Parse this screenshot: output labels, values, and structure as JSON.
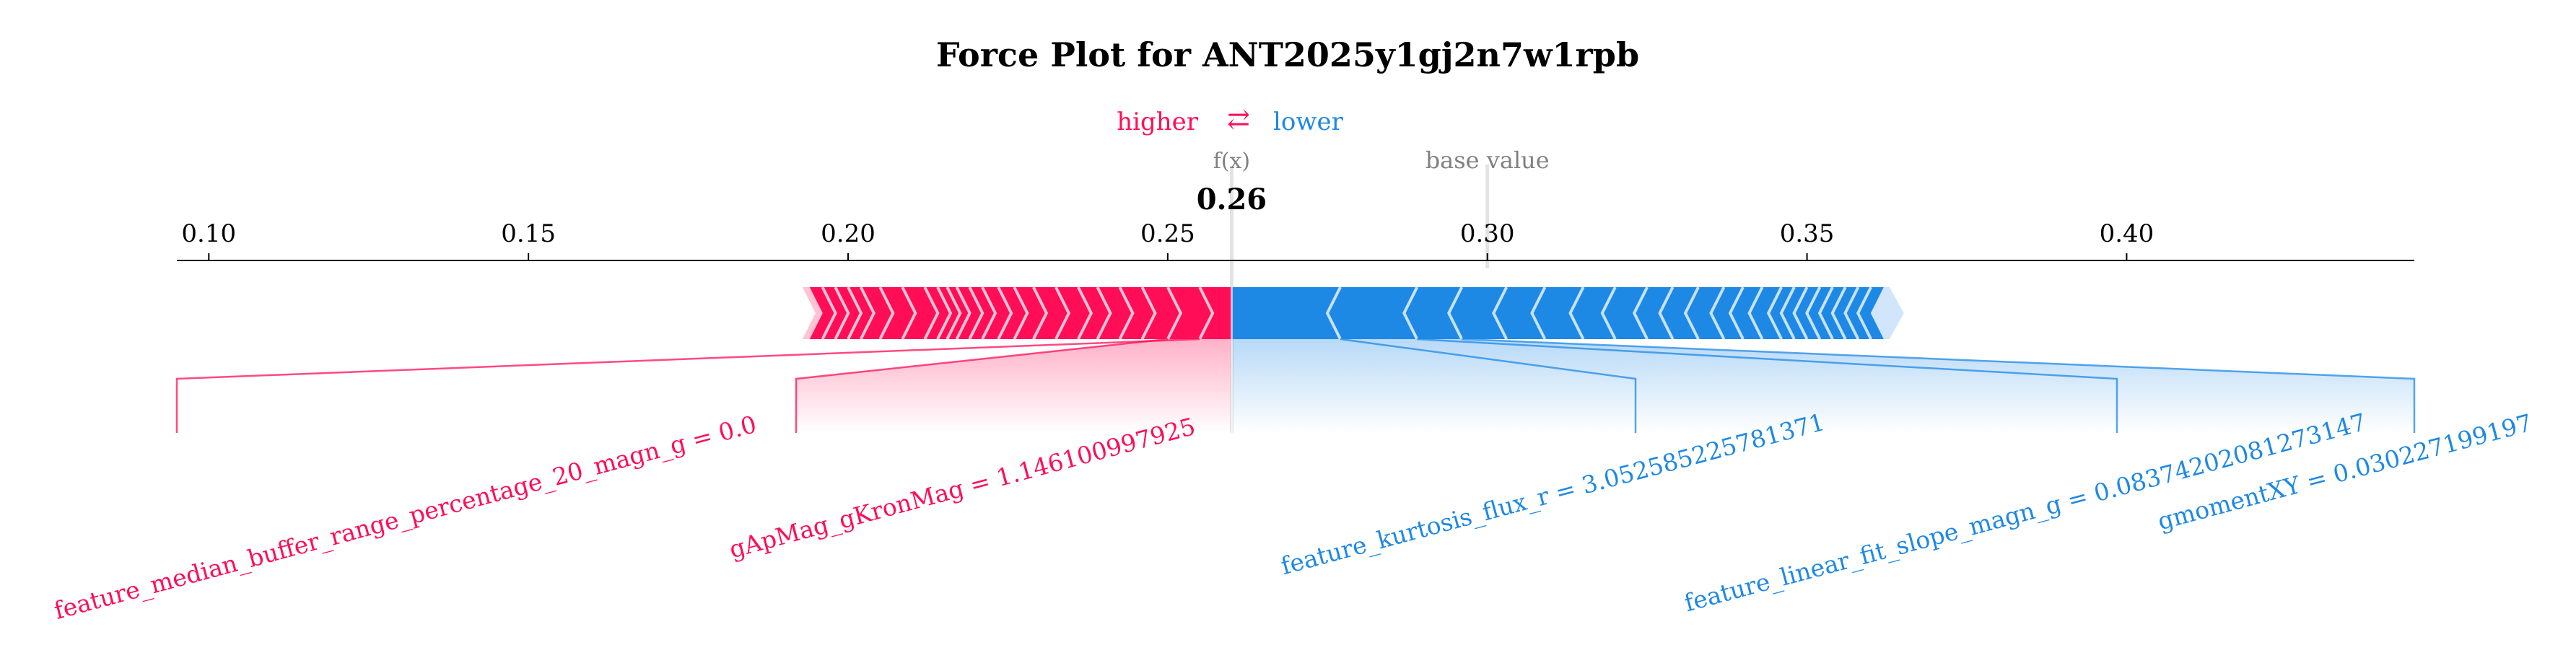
{
  "chart_data": {
    "type": "force",
    "title": "Force Plot for ANT2025y1gj2n7w1rpb",
    "legend": {
      "higher_label": "higher",
      "arrow_glyph": "⇄",
      "lower_label": "lower"
    },
    "fx_label": "f(x)",
    "fx_value": 0.26,
    "fx_value_text": "0.26",
    "base_value_label": "base value",
    "base_value": 0.3,
    "xlim": [
      0.095,
      0.445
    ],
    "ticks": [
      {
        "value": 0.1,
        "label": "0.10"
      },
      {
        "value": 0.15,
        "label": "0.15"
      },
      {
        "value": 0.2,
        "label": "0.20"
      },
      {
        "value": 0.25,
        "label": "0.25"
      },
      {
        "value": 0.3,
        "label": "0.30"
      },
      {
        "value": 0.35,
        "label": "0.35"
      },
      {
        "value": 0.4,
        "label": "0.40"
      }
    ],
    "positive_segment": {
      "start": 0.194,
      "end": 0.26
    },
    "negative_segment": {
      "start": 0.26,
      "end": 0.362
    },
    "positive_contributions": [
      {
        "label": "feature_median_buffer_range_percentage_20_magn_g = 0.0",
        "start": 0.255,
        "end": 0.26
      },
      {
        "label": "gApMag_gKronMag = 1.146100997925",
        "start": 0.25,
        "end": 0.255
      },
      {
        "label": "",
        "start": 0.246,
        "end": 0.25
      },
      {
        "label": "",
        "start": 0.2425,
        "end": 0.246
      },
      {
        "label": "",
        "start": 0.239,
        "end": 0.2425
      },
      {
        "label": "",
        "start": 0.236,
        "end": 0.239
      },
      {
        "label": "",
        "start": 0.2325,
        "end": 0.236
      },
      {
        "label": "",
        "start": 0.229,
        "end": 0.2325
      },
      {
        "label": "",
        "start": 0.226,
        "end": 0.229
      },
      {
        "label": "",
        "start": 0.2235,
        "end": 0.226
      },
      {
        "label": "",
        "start": 0.221,
        "end": 0.2235
      },
      {
        "label": "",
        "start": 0.219,
        "end": 0.221
      },
      {
        "label": "",
        "start": 0.217,
        "end": 0.219
      },
      {
        "label": "",
        "start": 0.2155,
        "end": 0.217
      },
      {
        "label": "",
        "start": 0.214,
        "end": 0.2155
      },
      {
        "label": "",
        "start": 0.212,
        "end": 0.214
      },
      {
        "label": "",
        "start": 0.2085,
        "end": 0.212
      },
      {
        "label": "",
        "start": 0.205,
        "end": 0.2085
      },
      {
        "label": "",
        "start": 0.202,
        "end": 0.205
      },
      {
        "label": "",
        "start": 0.2,
        "end": 0.202
      },
      {
        "label": "",
        "start": 0.198,
        "end": 0.2
      },
      {
        "label": "",
        "start": 0.196,
        "end": 0.198
      },
      {
        "label": "",
        "start": 0.194,
        "end": 0.196
      }
    ],
    "negative_contributions": [
      {
        "label": "feature_kurtosis_flux_r = 3.052585225781371",
        "start": 0.26,
        "end": 0.277
      },
      {
        "label": "feature_linear_fit_slope_magn_g = 0.08374202081273147",
        "start": 0.277,
        "end": 0.289
      },
      {
        "label": "gmomentXY = 0.030227199197",
        "start": 0.289,
        "end": 0.296
      },
      {
        "label": "",
        "start": 0.296,
        "end": 0.303
      },
      {
        "label": "",
        "start": 0.303,
        "end": 0.309
      },
      {
        "label": "",
        "start": 0.309,
        "end": 0.315
      },
      {
        "label": "",
        "start": 0.315,
        "end": 0.32
      },
      {
        "label": "",
        "start": 0.32,
        "end": 0.325
      },
      {
        "label": "",
        "start": 0.325,
        "end": 0.329
      },
      {
        "label": "",
        "start": 0.329,
        "end": 0.333
      },
      {
        "label": "",
        "start": 0.333,
        "end": 0.337
      },
      {
        "label": "",
        "start": 0.337,
        "end": 0.34
      },
      {
        "label": "",
        "start": 0.34,
        "end": 0.343
      },
      {
        "label": "",
        "start": 0.343,
        "end": 0.346
      },
      {
        "label": "",
        "start": 0.346,
        "end": 0.348
      },
      {
        "label": "",
        "start": 0.348,
        "end": 0.35
      },
      {
        "label": "",
        "start": 0.35,
        "end": 0.352
      },
      {
        "label": "",
        "start": 0.352,
        "end": 0.354
      },
      {
        "label": "",
        "start": 0.354,
        "end": 0.356
      },
      {
        "label": "",
        "start": 0.356,
        "end": 0.358
      },
      {
        "label": "",
        "start": 0.358,
        "end": 0.36
      },
      {
        "label": "",
        "start": 0.36,
        "end": 0.362
      }
    ],
    "colors": {
      "positive": "#ff0d57",
      "negative": "#1e88e5",
      "positive_light": "#ffc3d5",
      "negative_light": "#d1e6fa",
      "axis": "#000000",
      "muted_text": "#808080"
    }
  }
}
